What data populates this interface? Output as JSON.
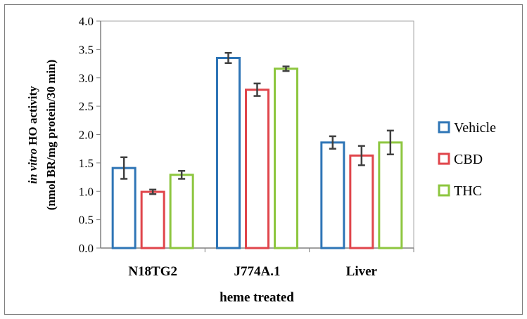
{
  "chart_data": {
    "type": "bar",
    "categories": [
      "N18TG2",
      "J774A.1",
      "Liver"
    ],
    "series": [
      {
        "name": "Vehicle",
        "color": "#2e75b6",
        "values": [
          1.41,
          3.35,
          1.86
        ],
        "errors": [
          0.19,
          0.09,
          0.11
        ]
      },
      {
        "name": "CBD",
        "color": "#e0454b",
        "values": [
          0.99,
          2.79,
          1.63
        ],
        "errors": [
          0.04,
          0.11,
          0.17
        ]
      },
      {
        "name": "THC",
        "color": "#8dc63f",
        "values": [
          1.29,
          3.16,
          1.86
        ],
        "errors": [
          0.07,
          0.04,
          0.21
        ]
      }
    ],
    "xlabel": "heme treated",
    "ylabel_italic": "in vitro",
    "ylabel_rest": " HO activity",
    "ylabel_line2": "(nmol BR/mg protein/30 min)",
    "ylim": [
      0,
      4.0
    ],
    "yticks": [
      "0.0",
      "0.5",
      "1.0",
      "1.5",
      "2.0",
      "2.5",
      "3.0",
      "3.5",
      "4.0"
    ],
    "grid": false,
    "legend_position": "right"
  }
}
